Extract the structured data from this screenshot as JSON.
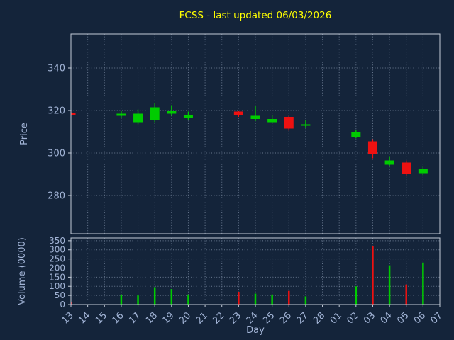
{
  "title": "FCSS - last updated 06/03/2026",
  "colors": {
    "background": "#14243a",
    "grid": "#8494ac",
    "spine": "#c3cbd8",
    "tick_label": "#a2b4d6",
    "title": "#ffff00",
    "up": "#00cc00",
    "down": "#ee1111"
  },
  "chart_data": {
    "type": "candlestick+volume",
    "title": "FCSS - last updated 06/03/2026",
    "xlabel": "Day",
    "ylabel_price": "Price",
    "ylabel_volume": "Volume (0000)",
    "grid": "dotted",
    "legend": "none",
    "x_categories": [
      "13",
      "14",
      "15",
      "16",
      "17",
      "18",
      "19",
      "20",
      "21",
      "22",
      "23",
      "24",
      "25",
      "26",
      "27",
      "28",
      "01",
      "02",
      "03",
      "04",
      "05",
      "06",
      "07"
    ],
    "price_ylim": [
      262,
      356
    ],
    "price_ticks": [
      280,
      300,
      320,
      340
    ],
    "volume_ylim": [
      0,
      365
    ],
    "volume_ticks": [
      0,
      50,
      100,
      150,
      200,
      250,
      300,
      350
    ],
    "candles": [
      {
        "day": "13",
        "open": 319.0,
        "high": 319.5,
        "low": 317.5,
        "close": 318.0,
        "volume": 15
      },
      {
        "day": "16",
        "open": 317.5,
        "high": 320.0,
        "low": 316.5,
        "close": 318.5,
        "volume": 55
      },
      {
        "day": "17",
        "open": 314.5,
        "high": 320.5,
        "low": 313.5,
        "close": 318.5,
        "volume": 50
      },
      {
        "day": "18",
        "open": 315.5,
        "high": 323.5,
        "low": 314.5,
        "close": 321.5,
        "volume": 95
      },
      {
        "day": "19",
        "open": 318.5,
        "high": 322.5,
        "low": 317.5,
        "close": 320.0,
        "volume": 85
      },
      {
        "day": "20",
        "open": 316.5,
        "high": 319.5,
        "low": 315.5,
        "close": 318.0,
        "volume": 55
      },
      {
        "day": "23",
        "open": 319.5,
        "high": 320.0,
        "low": 317.0,
        "close": 318.0,
        "volume": 70
      },
      {
        "day": "24",
        "open": 316.0,
        "high": 322.0,
        "low": 315.0,
        "close": 317.5,
        "volume": 60
      },
      {
        "day": "25",
        "open": 314.5,
        "high": 318.0,
        "low": 314.0,
        "close": 316.0,
        "volume": 55
      },
      {
        "day": "26",
        "open": 317.0,
        "high": 317.5,
        "low": 310.5,
        "close": 311.5,
        "volume": 75
      },
      {
        "day": "27",
        "open": 313.0,
        "high": 315.5,
        "low": 312.0,
        "close": 313.5,
        "volume": 45
      },
      {
        "day": "02",
        "open": 307.5,
        "high": 311.0,
        "low": 307.0,
        "close": 310.0,
        "volume": 100
      },
      {
        "day": "03",
        "open": 305.5,
        "high": 306.5,
        "low": 297.5,
        "close": 299.5,
        "volume": 320
      },
      {
        "day": "04",
        "open": 294.5,
        "high": 298.5,
        "low": 294.0,
        "close": 296.5,
        "volume": 215
      },
      {
        "day": "05",
        "open": 295.5,
        "high": 296.5,
        "low": 289.0,
        "close": 290.0,
        "volume": 110
      },
      {
        "day": "06",
        "open": 290.5,
        "high": 293.5,
        "low": 289.5,
        "close": 292.5,
        "volume": 230
      }
    ]
  }
}
